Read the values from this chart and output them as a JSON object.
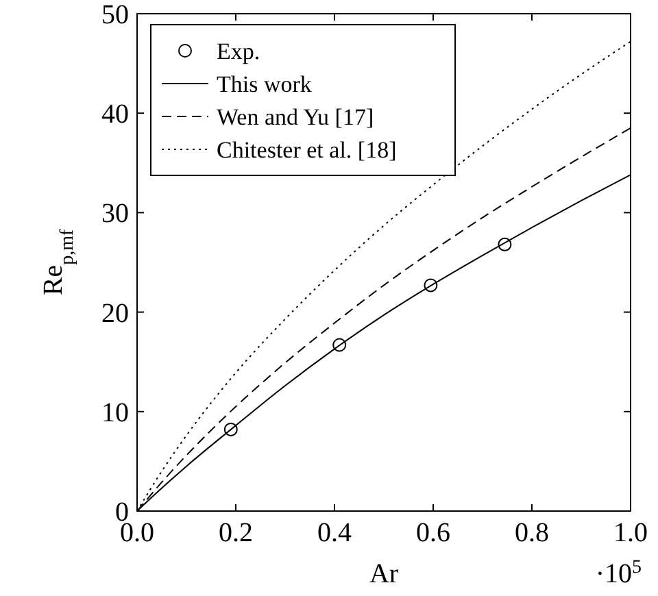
{
  "chart_data": {
    "type": "line",
    "xlabel": "Ar",
    "ylabel": "Re$_{p,mf}$",
    "xlim": [
      0,
      1
    ],
    "ylim": [
      0,
      50
    ],
    "xticks": [
      {
        "value": 0,
        "label": "0.0"
      },
      {
        "value": 0.2,
        "label": "0.2"
      },
      {
        "value": 0.4,
        "label": "0.4"
      },
      {
        "value": 0.6,
        "label": "0.6"
      },
      {
        "value": 0.8,
        "label": "0.8"
      },
      {
        "value": 1,
        "label": "1.0"
      }
    ],
    "yticks": [
      0,
      10,
      20,
      30,
      40,
      50
    ],
    "annotations": [
      "·10$^{5}$"
    ],
    "legend": "top left",
    "grid": false,
    "series": [
      {
        "name": "Exp.",
        "type": "scatter",
        "marker": "circle",
        "color": "#000000",
        "x": [
          0.19,
          0.41,
          0.595,
          0.745
        ],
        "values": [
          8.2,
          16.7,
          22.7,
          26.8
        ]
      },
      {
        "name": "This work",
        "line_style": "solid",
        "color": "#000000",
        "x": [
          0,
          0.05,
          0.1,
          0.2,
          0.3,
          0.4,
          0.5,
          0.6,
          0.7,
          0.8,
          0.9,
          1
        ],
        "values": [
          0,
          2.3,
          4.5,
          8.6,
          12.6,
          16.3,
          19.7,
          22.8,
          25.7,
          28.5,
          31.2,
          33.8
        ]
      },
      {
        "name": "Wen and Yu [17]",
        "line_style": "dashed",
        "color": "#000000",
        "x": [
          0,
          0.05,
          0.1,
          0.2,
          0.3,
          0.4,
          0.5,
          0.6,
          0.7,
          0.8,
          0.9,
          1
        ],
        "values": [
          0,
          2.9,
          5.6,
          10.5,
          14.9,
          18.9,
          22.7,
          26.2,
          29.5,
          32.6,
          35.6,
          38.5
        ]
      },
      {
        "name": "Chitester et al. [18]",
        "line_style": "dotted",
        "color": "#000000",
        "x": [
          0,
          0.05,
          0.1,
          0.2,
          0.3,
          0.4,
          0.5,
          0.6,
          0.7,
          0.8,
          0.9,
          1
        ],
        "values": [
          0,
          4.0,
          7.6,
          13.9,
          19.3,
          24.2,
          28.7,
          32.8,
          36.7,
          40.4,
          43.9,
          47.2
        ]
      }
    ]
  }
}
